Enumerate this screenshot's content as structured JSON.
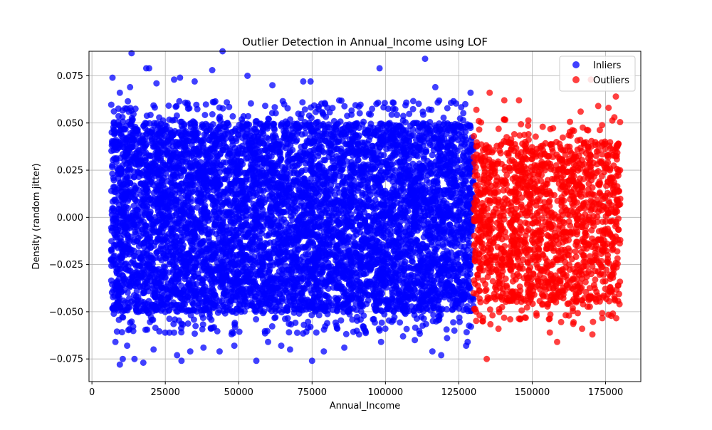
{
  "chart_data": {
    "type": "scatter",
    "title": "Outlier Detection in Annual_Income using LOF",
    "xlabel": "Annual_Income",
    "ylabel": "Density (random jitter)",
    "xlim": [
      -1000,
      187000
    ],
    "ylim": [
      -0.087,
      0.088
    ],
    "xticks": [
      0,
      25000,
      50000,
      75000,
      100000,
      125000,
      150000,
      175000
    ],
    "yticks": [
      -0.075,
      -0.05,
      -0.025,
      0.0,
      0.025,
      0.05,
      0.075
    ],
    "xtick_labels": [
      "0",
      "25000",
      "50000",
      "75000",
      "100000",
      "125000",
      "150000",
      "175000"
    ],
    "ytick_labels": [
      "−0.075",
      "−0.050",
      "−0.025",
      "0.000",
      "0.025",
      "0.050",
      "0.075"
    ],
    "grid": true,
    "legend_position": "top-right",
    "series": [
      {
        "name": "Inliers",
        "color": "#0000ff",
        "x_range": [
          6500,
          130000
        ],
        "y_core_range": [
          -0.05,
          0.05
        ],
        "points": [
          [
            13500,
            0.087
          ],
          [
            44500,
            0.088
          ],
          [
            18500,
            0.079
          ],
          [
            19500,
            0.079
          ],
          [
            98000,
            0.079
          ],
          [
            113500,
            0.084
          ],
          [
            41000,
            0.078
          ],
          [
            53000,
            0.075
          ],
          [
            7000,
            0.074
          ],
          [
            30000,
            0.074
          ],
          [
            72000,
            0.072
          ],
          [
            74500,
            0.072
          ],
          [
            35000,
            0.072
          ],
          [
            28000,
            0.073
          ],
          [
            61500,
            0.07
          ],
          [
            117000,
            0.069
          ],
          [
            129000,
            0.066
          ],
          [
            9500,
            0.066
          ],
          [
            13000,
            0.069
          ],
          [
            22000,
            0.071
          ],
          [
            9500,
            -0.078
          ],
          [
            10500,
            -0.075
          ],
          [
            14500,
            -0.075
          ],
          [
            17500,
            -0.077
          ],
          [
            29000,
            -0.073
          ],
          [
            30500,
            -0.076
          ],
          [
            56000,
            -0.076
          ],
          [
            75000,
            -0.076
          ],
          [
            119000,
            -0.073
          ],
          [
            116000,
            -0.071
          ],
          [
            127500,
            -0.068
          ],
          [
            128000,
            -0.066
          ],
          [
            98500,
            -0.066
          ],
          [
            79000,
            -0.071
          ],
          [
            64500,
            -0.068
          ],
          [
            43500,
            -0.071
          ],
          [
            48500,
            -0.068
          ],
          [
            21000,
            -0.07
          ],
          [
            8000,
            -0.066
          ],
          [
            12000,
            -0.068
          ],
          [
            33500,
            -0.071
          ],
          [
            38000,
            -0.069
          ],
          [
            60000,
            -0.066
          ],
          [
            67500,
            -0.07
          ],
          [
            86000,
            -0.069
          ],
          [
            91000,
            -0.062
          ],
          [
            106000,
            -0.063
          ],
          [
            110000,
            -0.065
          ],
          [
            121000,
            -0.064
          ],
          [
            123500,
            -0.06
          ]
        ]
      },
      {
        "name": "Outliers",
        "color": "#ff0000",
        "x_range": [
          130000,
          180000
        ],
        "y_core_range": [
          -0.045,
          0.04
        ],
        "points": [
          [
            170000,
            0.073
          ],
          [
            135500,
            0.066
          ],
          [
            178500,
            0.064
          ],
          [
            172500,
            0.059
          ],
          [
            145500,
            0.062
          ],
          [
            140500,
            0.062
          ],
          [
            176000,
            0.058
          ],
          [
            166500,
            0.056
          ],
          [
            131000,
            0.057
          ],
          [
            178000,
            0.053
          ],
          [
            134500,
            -0.075
          ],
          [
            158500,
            -0.066
          ],
          [
            156000,
            -0.061
          ],
          [
            167000,
            -0.059
          ],
          [
            170500,
            -0.062
          ],
          [
            138500,
            -0.059
          ],
          [
            142500,
            -0.054
          ],
          [
            147500,
            -0.053
          ],
          [
            162500,
            -0.052
          ],
          [
            177500,
            -0.051
          ]
        ]
      }
    ]
  }
}
